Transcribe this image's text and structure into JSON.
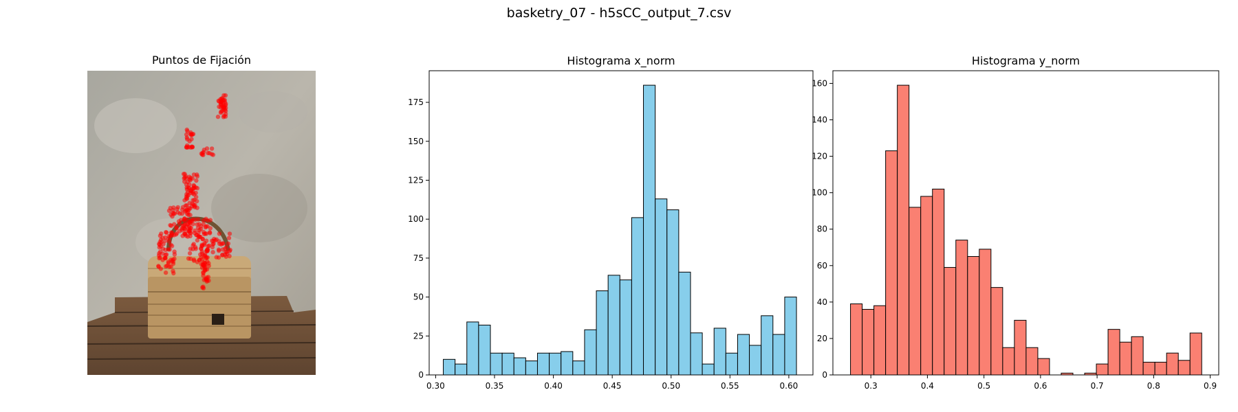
{
  "suptitle": "basketry_07 - h5sCC_output_7.csv",
  "fixation_panel": {
    "title": "Puntos de Fijación",
    "marker_color": "#ff0000"
  },
  "chart_data": [
    {
      "type": "bar",
      "title": "Histograma x_norm",
      "xlabel": "",
      "ylabel": "",
      "color": "#87ceeb",
      "edge_color": "#000000",
      "bin_start": 0.3065,
      "bin_width": 0.01,
      "values": [
        10,
        7,
        34,
        32,
        14,
        14,
        11,
        9,
        14,
        14,
        15,
        9,
        29,
        54,
        64,
        61,
        101,
        186,
        113,
        106,
        66,
        27,
        7,
        30,
        14,
        26,
        19,
        38,
        26,
        50
      ],
      "xlim": [
        0.2945,
        0.6205
      ],
      "ylim": [
        0,
        195.3
      ],
      "xticks": [
        0.3,
        0.35,
        0.4,
        0.45,
        0.5,
        0.55,
        0.6
      ],
      "xtick_labels": [
        "0.30",
        "0.35",
        "0.40",
        "0.45",
        "0.50",
        "0.55",
        "0.60"
      ],
      "yticks": [
        0,
        25,
        50,
        75,
        100,
        125,
        150,
        175
      ],
      "ytick_labels": [
        "0",
        "25",
        "50",
        "75",
        "100",
        "125",
        "150",
        "175"
      ],
      "grid": false
    },
    {
      "type": "bar",
      "title": "Histograma y_norm",
      "xlabel": "",
      "ylabel": "",
      "color": "#fa8072",
      "edge_color": "#000000",
      "bin_start": 0.264,
      "bin_width": 0.0207,
      "values": [
        39,
        36,
        38,
        123,
        159,
        92,
        98,
        102,
        59,
        74,
        65,
        69,
        48,
        15,
        30,
        15,
        9,
        0,
        1,
        0,
        1,
        6,
        25,
        18,
        21,
        7,
        7,
        12,
        8,
        23
      ],
      "xlim": [
        0.2329,
        0.9151
      ],
      "ylim": [
        0,
        166.95
      ],
      "xticks": [
        0.3,
        0.4,
        0.5,
        0.6,
        0.7,
        0.8,
        0.9
      ],
      "xtick_labels": [
        "0.3",
        "0.4",
        "0.5",
        "0.6",
        "0.7",
        "0.8",
        "0.9"
      ],
      "yticks": [
        0,
        20,
        40,
        60,
        80,
        100,
        120,
        140,
        160
      ],
      "ytick_labels": [
        "0",
        "20",
        "40",
        "60",
        "80",
        "100",
        "120",
        "140",
        "160"
      ],
      "grid": false
    }
  ]
}
